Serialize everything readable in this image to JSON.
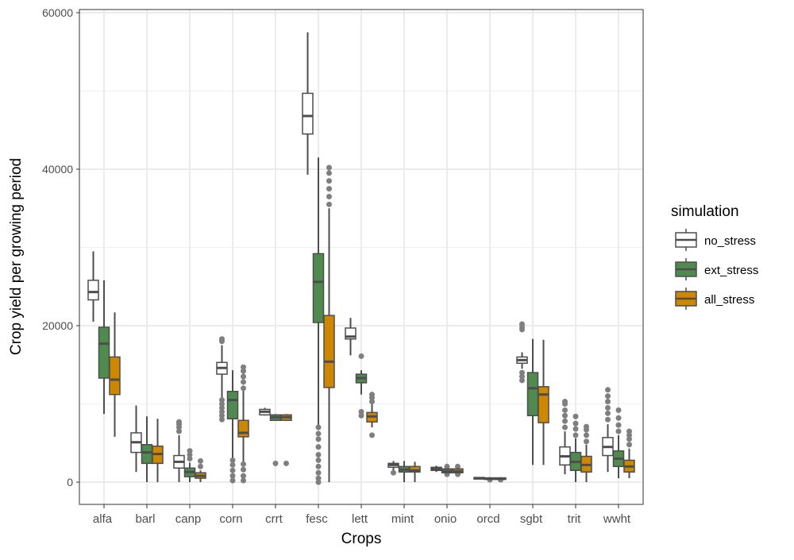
{
  "chart_data": {
    "type": "boxplot",
    "xlabel": "Crops",
    "ylabel": "Crop yield per growing period",
    "ylim": [
      -3000,
      60300
    ],
    "yticks": [
      0,
      20000,
      40000,
      60000
    ],
    "grid": true,
    "legend": {
      "title": "simulation",
      "placement": "right",
      "entries": [
        {
          "name": "no_stress",
          "color": "#ffffff"
        },
        {
          "name": "ext_stress",
          "color": "#4f8a4f"
        },
        {
          "name": "all_stress",
          "color": "#d08700"
        }
      ]
    },
    "categories": [
      "alfa",
      "barl",
      "canp",
      "corn",
      "crrt",
      "fesc",
      "lett",
      "mint",
      "onio",
      "orcd",
      "sgbt",
      "trit",
      "wwht"
    ],
    "series": [
      {
        "name": "no_stress",
        "boxes": [
          {
            "min": 20500,
            "q1": 23300,
            "med": 24300,
            "q3": 25800,
            "max": 29500,
            "out": []
          },
          {
            "min": 1300,
            "q1": 3800,
            "med": 5100,
            "q3": 6300,
            "max": 9800,
            "out": []
          },
          {
            "min": 0,
            "q1": 1800,
            "med": 2600,
            "q3": 3400,
            "max": 6000,
            "out": [
              6500,
              7000,
              7400,
              7700
            ]
          },
          {
            "min": 10800,
            "q1": 13800,
            "med": 14600,
            "q3": 15300,
            "max": 17500,
            "out": [
              8000,
              8500,
              9000,
              9500,
              10000,
              10500,
              18000,
              18300
            ]
          },
          {
            "min": 8500,
            "q1": 8600,
            "med": 9000,
            "q3": 9300,
            "max": 9500,
            "out": []
          },
          {
            "min": 39300,
            "q1": 44500,
            "med": 46800,
            "q3": 49700,
            "max": 57500,
            "out": []
          },
          {
            "min": 16200,
            "q1": 18300,
            "med": 18600,
            "q3": 19700,
            "max": 21000,
            "out": []
          },
          {
            "min": 1500,
            "q1": 1900,
            "med": 2200,
            "q3": 2400,
            "max": 2700,
            "out": [
              1200
            ]
          },
          {
            "min": 1300,
            "q1": 1500,
            "med": 1700,
            "q3": 1900,
            "max": 2100,
            "out": []
          },
          {
            "min": 400,
            "q1": 450,
            "med": 500,
            "q3": 600,
            "max": 650,
            "out": []
          },
          {
            "min": 14500,
            "q1": 15200,
            "med": 15600,
            "q3": 16000,
            "max": 16600,
            "out": [
              13000,
              13500,
              14000,
              19500,
              19800,
              20200
            ]
          },
          {
            "min": 1000,
            "q1": 2200,
            "med": 3300,
            "q3": 4500,
            "max": 6500,
            "out": [
              7000,
              7800,
              8500,
              9200,
              10000,
              10300
            ]
          },
          {
            "min": 1300,
            "q1": 3400,
            "med": 4500,
            "q3": 5700,
            "max": 7400,
            "out": [
              8000,
              8800,
              9500,
              10300,
              11000,
              11800
            ]
          }
        ]
      },
      {
        "name": "ext_stress",
        "boxes": [
          {
            "min": 8700,
            "q1": 13300,
            "med": 17700,
            "q3": 19800,
            "max": 25800,
            "out": []
          },
          {
            "min": 0,
            "q1": 2400,
            "med": 3800,
            "q3": 4800,
            "max": 8400,
            "out": []
          },
          {
            "min": 0,
            "q1": 700,
            "med": 1300,
            "q3": 1800,
            "max": 2500,
            "out": [
              3000,
              3500,
              4000
            ]
          },
          {
            "min": 3000,
            "q1": 8100,
            "med": 10500,
            "q3": 11600,
            "max": 14300,
            "out": [
              200,
              800,
              1500,
              2200,
              2800
            ]
          },
          {
            "min": 7900,
            "q1": 7900,
            "med": 8300,
            "q3": 8600,
            "max": 8700,
            "out": [
              2400
            ]
          },
          {
            "min": 7000,
            "q1": 20400,
            "med": 25600,
            "q3": 29200,
            "max": 41500,
            "out": [
              0,
              500,
              1200,
              2000,
              2800,
              3500,
              4500,
              5500,
              6200,
              7000
            ]
          },
          {
            "min": 11200,
            "q1": 12700,
            "med": 13300,
            "q3": 13800,
            "max": 14300,
            "out": [
              8500,
              9000,
              16100
            ]
          },
          {
            "min": 0,
            "q1": 1300,
            "med": 1600,
            "q3": 2000,
            "max": 2700,
            "out": []
          },
          {
            "min": 1000,
            "q1": 1200,
            "med": 1400,
            "q3": 1700,
            "max": 2000,
            "out": [
              1000,
              2000
            ]
          },
          {
            "min": 350,
            "q1": 400,
            "med": 450,
            "q3": 550,
            "max": 600,
            "out": [
              300
            ]
          },
          {
            "min": 2200,
            "q1": 8500,
            "med": 12000,
            "q3": 14000,
            "max": 18300,
            "out": []
          },
          {
            "min": 0,
            "q1": 1500,
            "med": 2600,
            "q3": 3800,
            "max": 5600,
            "out": [
              6000,
              6800,
              7500,
              8400
            ]
          },
          {
            "min": 500,
            "q1": 2000,
            "med": 3000,
            "q3": 4000,
            "max": 6000,
            "out": [
              6500,
              7300,
              8200,
              9200
            ]
          }
        ]
      },
      {
        "name": "all_stress",
        "boxes": [
          {
            "min": 5800,
            "q1": 11200,
            "med": 13100,
            "q3": 16000,
            "max": 21700,
            "out": []
          },
          {
            "min": 0,
            "q1": 2400,
            "med": 3600,
            "q3": 4600,
            "max": 8100,
            "out": []
          },
          {
            "min": 0,
            "q1": 500,
            "med": 800,
            "q3": 1200,
            "max": 1500,
            "out": [
              2000,
              2700
            ]
          },
          {
            "min": 2500,
            "q1": 5800,
            "med": 6300,
            "q3": 7900,
            "max": 11800,
            "out": [
              200,
              800,
              1600,
              2300,
              12000,
              12800,
              13500,
              14200,
              14700
            ]
          },
          {
            "min": 7900,
            "q1": 7900,
            "med": 8300,
            "q3": 8600,
            "max": 8700,
            "out": [
              2400
            ]
          },
          {
            "min": 0,
            "q1": 12100,
            "med": 15400,
            "q3": 21300,
            "max": 35000,
            "out": [
              35500,
              36500,
              37500,
              38500,
              39500,
              40200
            ]
          },
          {
            "min": 7000,
            "q1": 7700,
            "med": 8400,
            "q3": 8900,
            "max": 10000,
            "out": [
              6000,
              10300,
              10800,
              11200
            ]
          },
          {
            "min": 0,
            "q1": 1300,
            "med": 1500,
            "q3": 2000,
            "max": 2600,
            "out": []
          },
          {
            "min": 1000,
            "q1": 1200,
            "med": 1400,
            "q3": 1700,
            "max": 2000,
            "out": [
              1000,
              2000
            ]
          },
          {
            "min": 350,
            "q1": 400,
            "med": 450,
            "q3": 550,
            "max": 600,
            "out": [
              300
            ]
          },
          {
            "min": 2200,
            "q1": 7600,
            "med": 11200,
            "q3": 12200,
            "max": 18200,
            "out": []
          },
          {
            "min": 0,
            "q1": 1300,
            "med": 2200,
            "q3": 3300,
            "max": 4800,
            "out": [
              5200,
              6000,
              6700,
              7100
            ]
          },
          {
            "min": 500,
            "q1": 1300,
            "med": 2000,
            "q3": 2800,
            "max": 4300,
            "out": [
              4800,
              5500,
              6000,
              6500
            ]
          }
        ]
      }
    ]
  }
}
